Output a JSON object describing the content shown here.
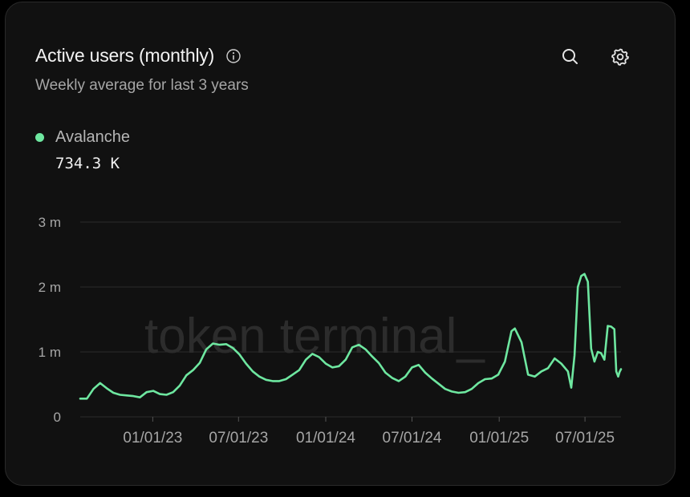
{
  "header": {
    "title": "Active users (monthly)",
    "subtitle": "Weekly average for last 3 years"
  },
  "toolbar": {
    "info_icon": "info-icon",
    "search_icon": "search-icon",
    "settings_icon": "gear-icon"
  },
  "legend": {
    "series_name": "Avalanche",
    "current_value": "734.3 K",
    "color": "#6ee7a0"
  },
  "watermark": "token terminal_",
  "colors": {
    "background": "#000000",
    "card": "#111111",
    "line": "#6ee7a0",
    "grid": "#2a2a2a",
    "muted_text": "#a6a6a6"
  },
  "chart_data": {
    "type": "line",
    "title": "Active users (monthly)",
    "subtitle": "Weekly average for last 3 years",
    "xlabel": "",
    "ylabel": "",
    "x_start": "2022-08-01",
    "x_end": "2025-09-15",
    "ylim": [
      0,
      3000000
    ],
    "y_ticks": [
      {
        "value": 0,
        "label": "0"
      },
      {
        "value": 1000000,
        "label": "1 m"
      },
      {
        "value": 2000000,
        "label": "2 m"
      },
      {
        "value": 3000000,
        "label": "3 m"
      }
    ],
    "x_ticks": [
      {
        "date": "2023-01-01",
        "label": "01/01/23"
      },
      {
        "date": "2023-07-01",
        "label": "07/01/23"
      },
      {
        "date": "2024-01-01",
        "label": "01/01/24"
      },
      {
        "date": "2024-07-01",
        "label": "07/01/24"
      },
      {
        "date": "2025-01-01",
        "label": "01/01/25"
      },
      {
        "date": "2025-07-01",
        "label": "07/01/25"
      }
    ],
    "grid": true,
    "legend_position": "top-left",
    "series": [
      {
        "name": "Avalanche",
        "color": "#6ee7a0",
        "points": [
          [
            "2022-08-01",
            280000
          ],
          [
            "2022-08-15",
            280000
          ],
          [
            "2022-08-29",
            430000
          ],
          [
            "2022-09-12",
            520000
          ],
          [
            "2022-09-26",
            440000
          ],
          [
            "2022-10-10",
            370000
          ],
          [
            "2022-10-24",
            340000
          ],
          [
            "2022-11-07",
            330000
          ],
          [
            "2022-11-21",
            320000
          ],
          [
            "2022-12-05",
            300000
          ],
          [
            "2022-12-19",
            380000
          ],
          [
            "2023-01-02",
            400000
          ],
          [
            "2023-01-16",
            350000
          ],
          [
            "2023-01-30",
            340000
          ],
          [
            "2023-02-13",
            380000
          ],
          [
            "2023-02-27",
            480000
          ],
          [
            "2023-03-13",
            640000
          ],
          [
            "2023-03-27",
            720000
          ],
          [
            "2023-04-10",
            830000
          ],
          [
            "2023-04-24",
            1040000
          ],
          [
            "2023-05-08",
            1130000
          ],
          [
            "2023-05-22",
            1110000
          ],
          [
            "2023-06-05",
            1120000
          ],
          [
            "2023-06-19",
            1060000
          ],
          [
            "2023-07-03",
            960000
          ],
          [
            "2023-07-17",
            820000
          ],
          [
            "2023-07-31",
            700000
          ],
          [
            "2023-08-14",
            620000
          ],
          [
            "2023-08-28",
            570000
          ],
          [
            "2023-09-11",
            550000
          ],
          [
            "2023-09-25",
            550000
          ],
          [
            "2023-10-09",
            580000
          ],
          [
            "2023-10-23",
            650000
          ],
          [
            "2023-11-06",
            720000
          ],
          [
            "2023-11-20",
            880000
          ],
          [
            "2023-12-04",
            970000
          ],
          [
            "2023-12-18",
            920000
          ],
          [
            "2024-01-01",
            820000
          ],
          [
            "2024-01-15",
            760000
          ],
          [
            "2024-01-29",
            780000
          ],
          [
            "2024-02-12",
            880000
          ],
          [
            "2024-02-26",
            1070000
          ],
          [
            "2024-03-11",
            1110000
          ],
          [
            "2024-03-25",
            1040000
          ],
          [
            "2024-04-08",
            930000
          ],
          [
            "2024-04-22",
            830000
          ],
          [
            "2024-05-06",
            680000
          ],
          [
            "2024-05-20",
            600000
          ],
          [
            "2024-06-03",
            550000
          ],
          [
            "2024-06-17",
            620000
          ],
          [
            "2024-07-01",
            760000
          ],
          [
            "2024-07-15",
            800000
          ],
          [
            "2024-07-29",
            680000
          ],
          [
            "2024-08-12",
            590000
          ],
          [
            "2024-08-26",
            510000
          ],
          [
            "2024-09-09",
            430000
          ],
          [
            "2024-09-23",
            390000
          ],
          [
            "2024-10-07",
            370000
          ],
          [
            "2024-10-21",
            380000
          ],
          [
            "2024-11-04",
            430000
          ],
          [
            "2024-11-18",
            520000
          ],
          [
            "2024-12-02",
            580000
          ],
          [
            "2024-12-16",
            590000
          ],
          [
            "2024-12-30",
            650000
          ],
          [
            "2025-01-13",
            850000
          ],
          [
            "2025-01-27",
            1320000
          ],
          [
            "2025-02-03",
            1360000
          ],
          [
            "2025-02-17",
            1150000
          ],
          [
            "2025-03-03",
            650000
          ],
          [
            "2025-03-17",
            620000
          ],
          [
            "2025-03-31",
            700000
          ],
          [
            "2025-04-14",
            750000
          ],
          [
            "2025-04-28",
            900000
          ],
          [
            "2025-05-12",
            820000
          ],
          [
            "2025-05-26",
            700000
          ],
          [
            "2025-06-02",
            450000
          ],
          [
            "2025-06-09",
            950000
          ],
          [
            "2025-06-16",
            2000000
          ],
          [
            "2025-06-23",
            2170000
          ],
          [
            "2025-06-30",
            2200000
          ],
          [
            "2025-07-07",
            2080000
          ],
          [
            "2025-07-14",
            1050000
          ],
          [
            "2025-07-21",
            850000
          ],
          [
            "2025-07-28",
            1000000
          ],
          [
            "2025-08-04",
            980000
          ],
          [
            "2025-08-11",
            880000
          ],
          [
            "2025-08-18",
            1400000
          ],
          [
            "2025-08-25",
            1390000
          ],
          [
            "2025-09-01",
            1350000
          ],
          [
            "2025-09-05",
            700000
          ],
          [
            "2025-09-09",
            620000
          ],
          [
            "2025-09-12",
            690000
          ],
          [
            "2025-09-15",
            734300
          ]
        ]
      }
    ]
  }
}
